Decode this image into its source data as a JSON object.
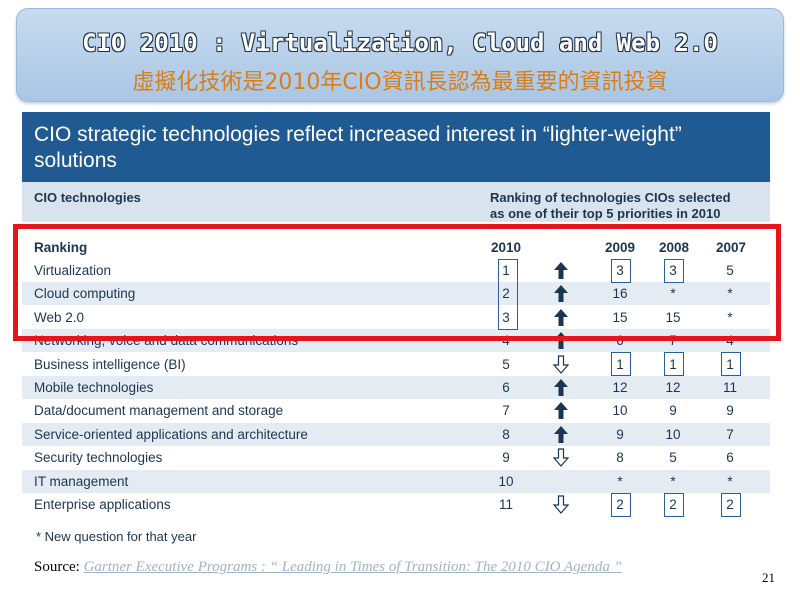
{
  "slide": {
    "title_en": "CIO 2010 : Virtualization, Cloud and Web 2.0",
    "title_zh": "虛擬化技術是2010年CIO資訊長認為最重要的資訊投資",
    "page_number": "21"
  },
  "chart": {
    "title": "CIO strategic technologies reflect increased interest in “lighter-weight” solutions",
    "left_header": "CIO technologies",
    "right_header_line1": "Ranking of technologies CIOs selected",
    "right_header_line2": "as one of their top 5 priorities in 2010",
    "columns": {
      "label": "Ranking",
      "y2010": "2010",
      "y2009": "2009",
      "y2008": "2008",
      "y2007": "2007"
    },
    "rows": [
      {
        "name": "Virtualization",
        "y2010": "1",
        "y2009": "3",
        "y2008": "3",
        "y2007": "5",
        "trend": "up"
      },
      {
        "name": "Cloud computing",
        "y2010": "2",
        "y2009": "16",
        "y2008": "*",
        "y2007": "*",
        "trend": "up"
      },
      {
        "name": "Web 2.0",
        "y2010": "3",
        "y2009": "15",
        "y2008": "15",
        "y2007": "*",
        "trend": "up"
      },
      {
        "name": "Networking, voice and data communications",
        "y2010": "4",
        "y2009": "6",
        "y2008": "7",
        "y2007": "4",
        "trend": "up"
      },
      {
        "name": "Business intelligence (BI)",
        "y2010": "5",
        "y2009": "1",
        "y2008": "1",
        "y2007": "1",
        "trend": "down"
      },
      {
        "name": "Mobile technologies",
        "y2010": "6",
        "y2009": "12",
        "y2008": "12",
        "y2007": "11",
        "trend": "up"
      },
      {
        "name": "Data/document management and storage",
        "y2010": "7",
        "y2009": "10",
        "y2008": "9",
        "y2007": "9",
        "trend": "up"
      },
      {
        "name": "Service-oriented applications and architecture",
        "y2010": "8",
        "y2009": "9",
        "y2008": "10",
        "y2007": "7",
        "trend": "up"
      },
      {
        "name": "Security technologies",
        "y2010": "9",
        "y2009": "8",
        "y2008": "5",
        "y2007": "6",
        "trend": "down"
      },
      {
        "name": "IT management",
        "y2010": "10",
        "y2009": "*",
        "y2008": "*",
        "y2007": "*",
        "trend": "none"
      },
      {
        "name": "Enterprise applications",
        "y2010": "11",
        "y2009": "2",
        "y2008": "2",
        "y2007": "2",
        "trend": "down"
      }
    ],
    "footnote": "* New question for that year"
  },
  "source": {
    "label": "Source:",
    "link_text": "Gartner Executive Programs : “ Leading in Times of Transition: The 2010 CIO Agenda ”"
  },
  "colors": {
    "header_blue": "#1f5a93",
    "highlight_red": "#e8141b",
    "orange_text": "#d97d18",
    "arrow_dark": "#1c3550"
  }
}
